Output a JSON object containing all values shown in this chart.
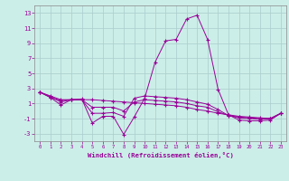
{
  "xlabel": "Windchill (Refroidissement éolien,°C)",
  "background_color": "#cceee8",
  "grid_color": "#aacccc",
  "line_color": "#990099",
  "x": [
    0,
    1,
    2,
    3,
    4,
    5,
    6,
    7,
    8,
    9,
    10,
    11,
    12,
    13,
    14,
    15,
    16,
    17,
    18,
    19,
    20,
    21,
    22,
    23
  ],
  "series": [
    [
      2.5,
      2.0,
      1.5,
      1.5,
      1.5,
      1.5,
      1.4,
      1.3,
      1.2,
      1.1,
      1.0,
      0.9,
      0.8,
      0.7,
      0.5,
      0.2,
      0.0,
      -0.3,
      -0.5,
      -0.7,
      -0.8,
      -0.9,
      -1.0,
      -0.3
    ],
    [
      2.5,
      1.8,
      0.8,
      1.5,
      1.6,
      -1.6,
      -0.7,
      -0.7,
      -3.1,
      -0.8,
      1.7,
      6.5,
      9.3,
      9.5,
      12.2,
      12.7,
      9.5,
      2.9,
      -0.5,
      -1.2,
      -1.3,
      -1.3,
      -1.2,
      -0.3
    ],
    [
      2.5,
      1.8,
      1.4,
      1.5,
      1.5,
      -0.3,
      -0.3,
      -0.2,
      -0.7,
      1.7,
      2.0,
      1.9,
      1.8,
      1.7,
      1.5,
      1.2,
      0.9,
      0.2,
      -0.6,
      -0.9,
      -1.0,
      -1.1,
      -1.0,
      -0.3
    ],
    [
      2.5,
      1.9,
      1.2,
      1.5,
      1.5,
      0.5,
      0.5,
      0.5,
      0.0,
      1.2,
      1.5,
      1.4,
      1.3,
      1.2,
      1.0,
      0.7,
      0.5,
      -0.1,
      -0.6,
      -0.8,
      -0.9,
      -1.0,
      -1.0,
      -0.3
    ]
  ],
  "xmin": -0.5,
  "xmax": 23.5,
  "ymin": -4,
  "ymax": 14,
  "yticks": [
    -3,
    -1,
    1,
    3,
    5,
    7,
    9,
    11,
    13
  ],
  "xticks": [
    0,
    1,
    2,
    3,
    4,
    5,
    6,
    7,
    8,
    9,
    10,
    11,
    12,
    13,
    14,
    15,
    16,
    17,
    18,
    19,
    20,
    21,
    22,
    23
  ]
}
